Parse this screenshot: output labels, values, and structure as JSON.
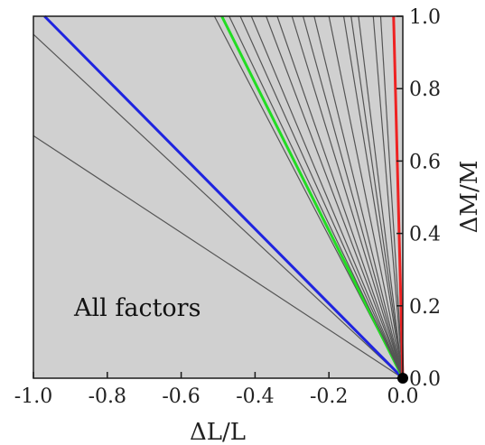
{
  "chart_data": {
    "type": "line",
    "title": "",
    "xlabel": "ΔL/L",
    "ylabel": "ΔM/M",
    "xlim": [
      -1.0,
      0.0
    ],
    "ylim": [
      0.0,
      1.0
    ],
    "x_ticks": [
      -1.0,
      -0.8,
      -0.6,
      -0.4,
      -0.2,
      0.0
    ],
    "x_tick_labels": [
      "-1.0",
      "-0.8",
      "-0.6",
      "-0.4",
      "-0.2",
      "0.0"
    ],
    "y_ticks": [
      0.0,
      0.2,
      0.4,
      0.6,
      0.8,
      1.0
    ],
    "y_tick_labels": [
      "0.0",
      "0.2",
      "0.4",
      "0.6",
      "0.8",
      "1.0"
    ],
    "y_axis_position": "right",
    "grid": false,
    "legend": "none",
    "annotation": "All factors",
    "origin_marker": [
      0.0,
      0.0
    ],
    "background_color": "#d0d0d0",
    "series": [
      {
        "color": "#555555",
        "x": [
          0.0,
          -1.0
        ],
        "y": [
          0.0,
          0.67
        ]
      },
      {
        "color": "#555555",
        "x": [
          0.0,
          -1.0
        ],
        "y": [
          0.0,
          0.95
        ]
      },
      {
        "color": "#1f24e0",
        "x": [
          0.0,
          -0.97
        ],
        "y": [
          0.0,
          1.0
        ]
      },
      {
        "color": "#555555",
        "x": [
          0.0,
          -0.51
        ],
        "y": [
          0.0,
          1.0
        ]
      },
      {
        "color": "#22dd22",
        "x": [
          0.0,
          -0.49
        ],
        "y": [
          0.0,
          1.0
        ]
      },
      {
        "color": "#555555",
        "x": [
          0.0,
          -0.47
        ],
        "y": [
          0.0,
          1.0
        ]
      },
      {
        "color": "#555555",
        "x": [
          0.0,
          -0.44
        ],
        "y": [
          0.0,
          1.0
        ]
      },
      {
        "color": "#555555",
        "x": [
          0.0,
          -0.41
        ],
        "y": [
          0.0,
          1.0
        ]
      },
      {
        "color": "#555555",
        "x": [
          0.0,
          -0.37
        ],
        "y": [
          0.0,
          1.0
        ]
      },
      {
        "color": "#555555",
        "x": [
          0.0,
          -0.34
        ],
        "y": [
          0.0,
          1.0
        ]
      },
      {
        "color": "#555555",
        "x": [
          0.0,
          -0.3
        ],
        "y": [
          0.0,
          1.0
        ]
      },
      {
        "color": "#555555",
        "x": [
          0.0,
          -0.27
        ],
        "y": [
          0.0,
          1.0
        ]
      },
      {
        "color": "#555555",
        "x": [
          0.0,
          -0.24
        ],
        "y": [
          0.0,
          1.0
        ]
      },
      {
        "color": "#555555",
        "x": [
          0.0,
          -0.2
        ],
        "y": [
          0.0,
          1.0
        ]
      },
      {
        "color": "#555555",
        "x": [
          0.0,
          -0.16
        ],
        "y": [
          0.0,
          1.0
        ]
      },
      {
        "color": "#555555",
        "x": [
          0.0,
          -0.14
        ],
        "y": [
          0.0,
          1.0
        ]
      },
      {
        "color": "#555555",
        "x": [
          0.0,
          -0.12
        ],
        "y": [
          0.0,
          1.0
        ]
      },
      {
        "color": "#555555",
        "x": [
          0.0,
          -0.08
        ],
        "y": [
          0.0,
          1.0
        ]
      },
      {
        "color": "#555555",
        "x": [
          0.0,
          -0.06
        ],
        "y": [
          0.0,
          1.0
        ]
      },
      {
        "color": "#ee2222",
        "x": [
          0.0,
          -0.025
        ],
        "y": [
          0.0,
          1.0
        ]
      }
    ]
  }
}
